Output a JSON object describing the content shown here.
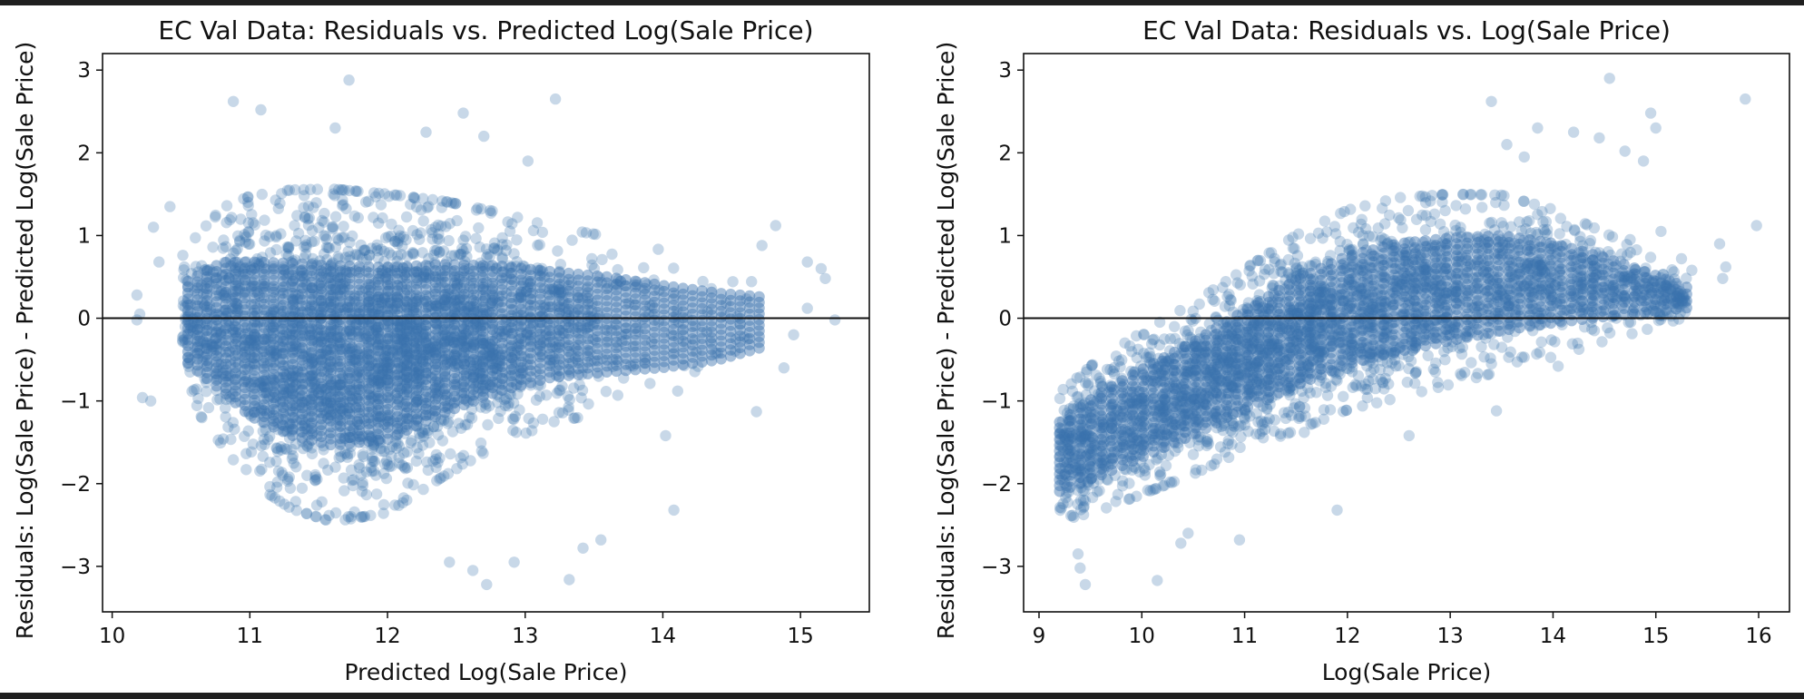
{
  "chart_data": [
    {
      "type": "scatter",
      "title": "EC Val Data: Residuals vs. Predicted Log(Sale Price)",
      "xlabel": "Predicted Log(Sale Price)",
      "ylabel": "Residuals: Log(Sale Price) - Predicted Log(Sale Price)",
      "xlim": [
        9.93,
        15.5
      ],
      "ylim": [
        -3.55,
        3.2
      ],
      "xticks": [
        "10",
        "11",
        "12",
        "13",
        "14",
        "15"
      ],
      "yticks": [
        "−3",
        "−2",
        "−1",
        "0",
        "1",
        "2",
        "3"
      ],
      "xtick_values": [
        10,
        11,
        12,
        13,
        14,
        15
      ],
      "ytick_values": [
        -3,
        -2,
        -1,
        0,
        1,
        2,
        3
      ],
      "reference_line": {
        "y": 0,
        "color": "#111111"
      },
      "point_color": "#3a72ad",
      "point_opacity": 0.28,
      "grid": false,
      "density_profile": {
        "x": [
          10.55,
          10.8,
          11.0,
          11.3,
          11.6,
          12.0,
          12.4,
          12.8,
          13.2,
          13.6,
          14.0,
          14.4,
          14.7
        ],
        "upper": [
          0.75,
          1.15,
          1.25,
          1.3,
          1.3,
          1.25,
          1.2,
          1.1,
          0.95,
          0.85,
          0.7,
          0.55,
          0.45
        ],
        "lower": [
          -0.85,
          -1.35,
          -1.75,
          -2.05,
          -2.2,
          -2.1,
          -1.7,
          -1.35,
          -1.1,
          -1.0,
          -0.9,
          -0.75,
          -0.55
        ]
      },
      "outliers": [
        {
          "x": 10.18,
          "y": 0.28
        },
        {
          "x": 10.2,
          "y": 0.05
        },
        {
          "x": 10.18,
          "y": -0.02
        },
        {
          "x": 10.22,
          "y": -0.96
        },
        {
          "x": 10.28,
          "y": -1.0
        },
        {
          "x": 10.3,
          "y": 1.1
        },
        {
          "x": 10.34,
          "y": 0.68
        },
        {
          "x": 10.42,
          "y": 1.35
        },
        {
          "x": 10.88,
          "y": 2.62
        },
        {
          "x": 11.08,
          "y": 2.52
        },
        {
          "x": 11.62,
          "y": 2.3
        },
        {
          "x": 11.72,
          "y": 2.88
        },
        {
          "x": 12.28,
          "y": 2.25
        },
        {
          "x": 12.55,
          "y": 2.48
        },
        {
          "x": 12.7,
          "y": 2.2
        },
        {
          "x": 13.22,
          "y": 2.65
        },
        {
          "x": 13.02,
          "y": 1.9
        },
        {
          "x": 12.72,
          "y": -3.22
        },
        {
          "x": 12.92,
          "y": -2.95
        },
        {
          "x": 13.32,
          "y": -3.16
        },
        {
          "x": 13.55,
          "y": -2.68
        },
        {
          "x": 13.42,
          "y": -2.78
        },
        {
          "x": 12.45,
          "y": -2.95
        },
        {
          "x": 12.62,
          "y": -3.05
        },
        {
          "x": 14.08,
          "y": -2.32
        },
        {
          "x": 14.02,
          "y": -1.42
        },
        {
          "x": 14.68,
          "y": -1.13
        },
        {
          "x": 14.88,
          "y": -0.6
        },
        {
          "x": 14.82,
          "y": 1.12
        },
        {
          "x": 14.72,
          "y": 0.88
        },
        {
          "x": 15.05,
          "y": 0.68
        },
        {
          "x": 15.15,
          "y": 0.6
        },
        {
          "x": 15.18,
          "y": 0.48
        },
        {
          "x": 15.25,
          "y": -0.02
        },
        {
          "x": 15.05,
          "y": 0.12
        },
        {
          "x": 14.95,
          "y": -0.2
        }
      ]
    },
    {
      "type": "scatter",
      "title": "EC Val Data: Residuals vs. Log(Sale Price)",
      "xlabel": "Log(Sale Price)",
      "ylabel": "Residuals: Log(Sale Price) - Predicted Log(Sale Price)",
      "xlim": [
        8.85,
        16.3
      ],
      "ylim": [
        -3.55,
        3.2
      ],
      "xticks": [
        "9",
        "10",
        "11",
        "12",
        "13",
        "14",
        "15",
        "16"
      ],
      "yticks": [
        "−3",
        "−2",
        "−1",
        "0",
        "1",
        "2",
        "3"
      ],
      "xtick_values": [
        9,
        10,
        11,
        12,
        13,
        14,
        15,
        16
      ],
      "ytick_values": [
        -3,
        -2,
        -1,
        0,
        1,
        2,
        3
      ],
      "reference_line": {
        "y": 0,
        "color": "#111111"
      },
      "point_color": "#3a72ad",
      "point_opacity": 0.28,
      "grid": false,
      "density_profile": {
        "x": [
          9.2,
          9.6,
          10.0,
          10.5,
          11.0,
          11.5,
          12.0,
          12.5,
          13.0,
          13.5,
          14.0,
          14.5,
          15.0,
          15.3
        ],
        "upper": [
          -1.0,
          -0.6,
          -0.3,
          0.05,
          0.45,
          0.85,
          1.15,
          1.3,
          1.35,
          1.35,
          1.2,
          0.95,
          0.65,
          0.45
        ],
        "lower": [
          -2.35,
          -2.2,
          -2.0,
          -1.75,
          -1.45,
          -1.2,
          -0.95,
          -0.8,
          -0.65,
          -0.5,
          -0.35,
          -0.2,
          -0.05,
          0.05
        ]
      },
      "outliers": [
        {
          "x": 9.4,
          "y": -3.02
        },
        {
          "x": 9.45,
          "y": -3.22
        },
        {
          "x": 9.38,
          "y": -2.85
        },
        {
          "x": 10.15,
          "y": -3.17
        },
        {
          "x": 10.38,
          "y": -2.72
        },
        {
          "x": 10.45,
          "y": -2.6
        },
        {
          "x": 10.95,
          "y": -2.68
        },
        {
          "x": 11.58,
          "y": -1.38
        },
        {
          "x": 11.9,
          "y": -2.32
        },
        {
          "x": 12.6,
          "y": -1.42
        },
        {
          "x": 13.45,
          "y": -1.12
        },
        {
          "x": 13.4,
          "y": 2.62
        },
        {
          "x": 13.55,
          "y": 2.1
        },
        {
          "x": 13.72,
          "y": 1.95
        },
        {
          "x": 13.85,
          "y": 2.3
        },
        {
          "x": 14.2,
          "y": 2.25
        },
        {
          "x": 14.45,
          "y": 2.18
        },
        {
          "x": 14.55,
          "y": 2.9
        },
        {
          "x": 14.7,
          "y": 2.02
        },
        {
          "x": 14.88,
          "y": 1.9
        },
        {
          "x": 14.95,
          "y": 2.48
        },
        {
          "x": 15.0,
          "y": 2.3
        },
        {
          "x": 15.05,
          "y": 1.05
        },
        {
          "x": 15.25,
          "y": 0.72
        },
        {
          "x": 15.62,
          "y": 0.9
        },
        {
          "x": 15.68,
          "y": 0.62
        },
        {
          "x": 15.65,
          "y": 0.48
        },
        {
          "x": 15.87,
          "y": 2.65
        },
        {
          "x": 15.98,
          "y": 1.12
        },
        {
          "x": 14.05,
          "y": -0.58
        },
        {
          "x": 14.75,
          "y": 0.95
        },
        {
          "x": 15.35,
          "y": 0.58
        }
      ]
    }
  ]
}
